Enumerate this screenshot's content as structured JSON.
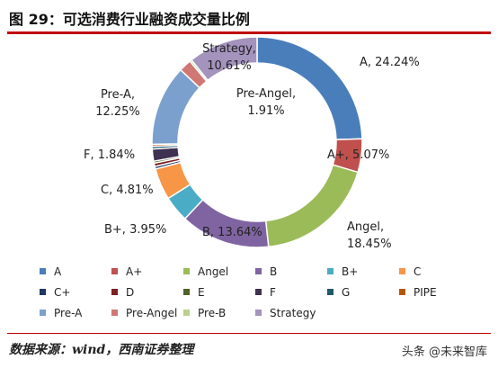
{
  "figure": {
    "title": "图 29：可选消费行业融资成交量比例",
    "source": "数据来源：wind，西南证券整理",
    "watermark_text": "头条 @未来智库"
  },
  "chart_data": {
    "type": "pie",
    "donut": true,
    "legend_position": "bottom",
    "categories": [
      "A",
      "A+",
      "Angel",
      "B",
      "B+",
      "C",
      "C+",
      "D",
      "E",
      "F",
      "G",
      "PIPE",
      "Pre-A",
      "Pre-Angel",
      "Pre-B",
      "Strategy"
    ],
    "values": [
      24.24,
      5.07,
      18.45,
      13.64,
      3.95,
      4.81,
      0.4,
      0.5,
      0.3,
      1.84,
      0.4,
      0.3,
      12.25,
      1.91,
      0.3,
      10.61
    ],
    "colors": [
      "#4a7ebb",
      "#c0504d",
      "#9bbb59",
      "#8064a2",
      "#4bacc6",
      "#f79646",
      "#1f3864",
      "#7f1f1f",
      "#4f6228",
      "#3f3151",
      "#215968",
      "#b65708",
      "#7ba0cd",
      "#d07774",
      "#bcd18a",
      "#a393bd"
    ],
    "data_labels": {
      "A": "A, 24.24%",
      "A+": "A+, 5.07%",
      "Angel": [
        "Angel,",
        "18.45%"
      ],
      "B": "B, 13.64%",
      "B+": "B+, 3.95%",
      "C": "C, 4.81%",
      "F": "F, 1.84%",
      "Pre-A": [
        "Pre-A,",
        "12.25%"
      ],
      "Pre-Angel": [
        "Pre-Angel,",
        "1.91%"
      ],
      "Strategy": [
        "Strategy,",
        "10.61%"
      ]
    }
  }
}
